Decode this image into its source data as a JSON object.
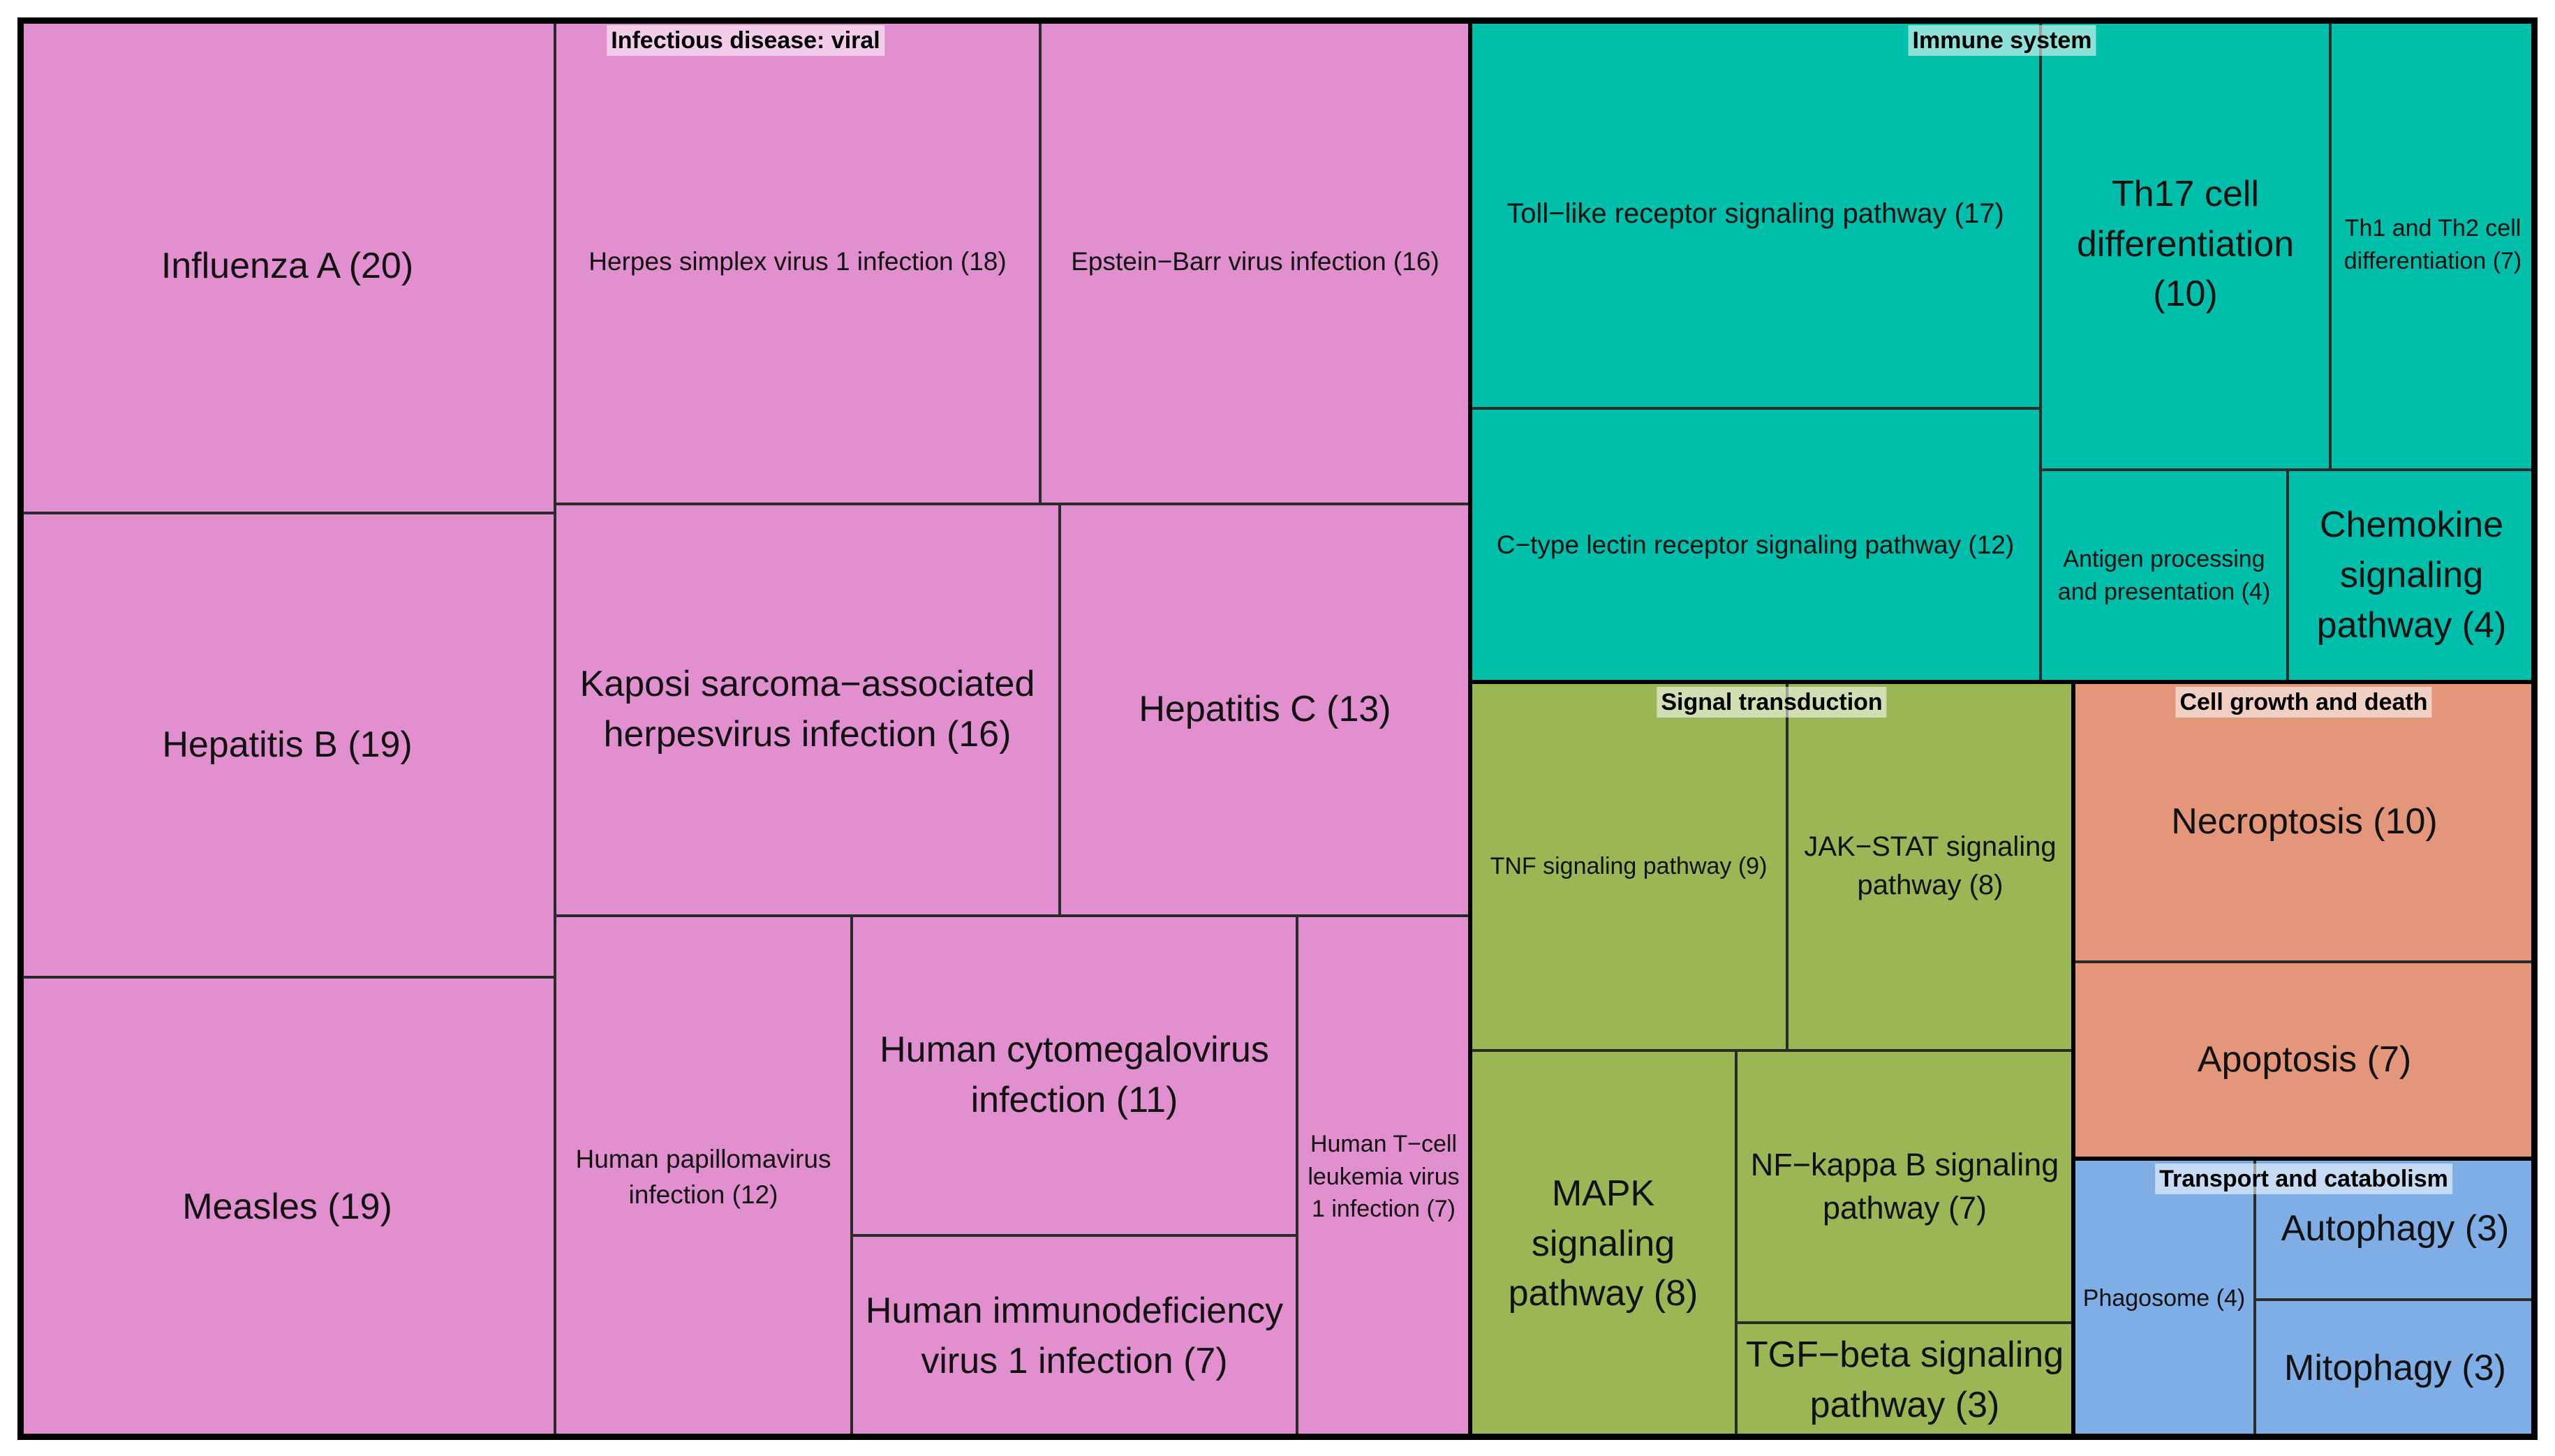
{
  "chart_data": {
    "type": "treemap",
    "title": "",
    "groups": [
      {
        "name": "Infectious disease: viral",
        "color": "#E28FD0",
        "items": [
          {
            "label": "Influenza A (20)",
            "value": 20
          },
          {
            "label": "Hepatitis B (19)",
            "value": 19
          },
          {
            "label": "Measles (19)",
            "value": 19
          },
          {
            "label": "Herpes simplex virus 1 infection (18)",
            "value": 18
          },
          {
            "label": "Epstein−Barr virus infection (16)",
            "value": 16
          },
          {
            "label": "Kaposi sarcoma−associated herpesvirus infection (16)",
            "value": 16
          },
          {
            "label": "Hepatitis C (13)",
            "value": 13
          },
          {
            "label": "Human papillomavirus infection (12)",
            "value": 12
          },
          {
            "label": "Human cytomegalovirus infection (11)",
            "value": 11
          },
          {
            "label": "Human immunodeficiency virus 1 infection (7)",
            "value": 7
          },
          {
            "label": "Human T−cell leukemia virus 1 infection (7)",
            "value": 7
          }
        ]
      },
      {
        "name": "Immune system",
        "color": "#00BFAA",
        "items": [
          {
            "label": "Toll−like receptor signaling pathway (17)",
            "value": 17
          },
          {
            "label": "C−type lectin receptor signaling pathway (12)",
            "value": 12
          },
          {
            "label": "Th17 cell differentiation (10)",
            "value": 10
          },
          {
            "label": "Th1 and Th2 cell differentiation (7)",
            "value": 7
          },
          {
            "label": "Antigen processing and presentation (4)",
            "value": 4
          },
          {
            "label": "Chemokine signaling pathway (4)",
            "value": 4
          }
        ]
      },
      {
        "name": "Signal transduction",
        "color": "#9BB654",
        "items": [
          {
            "label": "TNF signaling pathway (9)",
            "value": 9
          },
          {
            "label": "JAK−STAT signaling pathway (8)",
            "value": 8
          },
          {
            "label": "MAPK signaling pathway (8)",
            "value": 8
          },
          {
            "label": "NF−kappa B signaling pathway (7)",
            "value": 7
          },
          {
            "label": "TGF−beta signaling pathway (3)",
            "value": 3
          }
        ]
      },
      {
        "name": "Cell growth and death",
        "color": "#E3967A",
        "items": [
          {
            "label": "Necroptosis (10)",
            "value": 10
          },
          {
            "label": "Apoptosis (7)",
            "value": 7
          }
        ]
      },
      {
        "name": "Transport and catabolism",
        "color": "#7EAEE5",
        "items": [
          {
            "label": "Phagosome (4)",
            "value": 4
          },
          {
            "label": "Autophagy (3)",
            "value": 3
          },
          {
            "label": "Mitophagy (3)",
            "value": 3
          }
        ]
      }
    ]
  }
}
